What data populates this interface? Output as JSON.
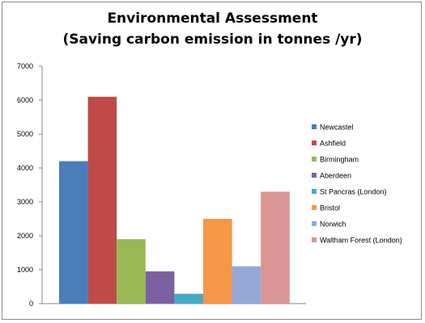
{
  "chart_data": {
    "type": "bar",
    "title_line1": "Environmental Assessment",
    "title_line2": "(Saving carbon emission in tonnes /yr)",
    "categories": [
      "Newcastel",
      "Ashfield",
      "Birmingham",
      "Aberdeen",
      "St Pancras (London)",
      "Bristol",
      "Norwich",
      "Waltham Forest (London)"
    ],
    "values": [
      4200,
      6100,
      1900,
      950,
      290,
      2500,
      1100,
      3300
    ],
    "colors": [
      "#4a7ebb",
      "#be4b48",
      "#98b954",
      "#7d60a0",
      "#46aac5",
      "#f79646",
      "#94a9d8",
      "#d99694"
    ],
    "yticks": [
      "0",
      "1000",
      "2000",
      "3000",
      "4000",
      "5000",
      "6000",
      "7000"
    ],
    "ylim": [
      0,
      7000
    ],
    "grid": false,
    "legend_position": "right"
  }
}
